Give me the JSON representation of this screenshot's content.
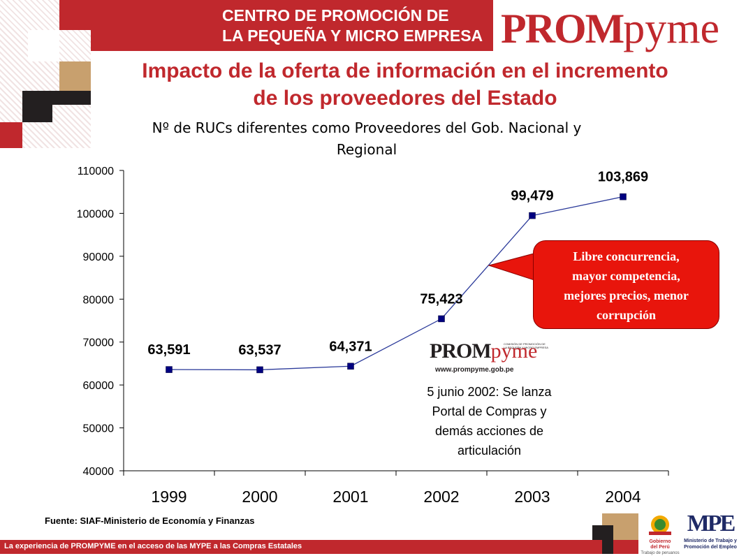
{
  "header": {
    "band_text_line1": "CENTRO DE PROMOCIÓN DE",
    "band_text_line2": "LA PEQUEÑA Y MICRO EMPRESA",
    "logo_prom": "PROM",
    "logo_pyme": "pyme"
  },
  "title_line1": "Impacto de la oferta de información en el incremento",
  "title_line2": "de los proveedores del Estado",
  "chart_data": {
    "type": "line",
    "title_line1": "Nº de RUCs diferentes como Proveedores del Gob. Nacional y",
    "title_line2": "Regional",
    "categories": [
      "1999",
      "2000",
      "2001",
      "2002",
      "2003",
      "2004"
    ],
    "values": [
      63591,
      63537,
      64371,
      75423,
      99479,
      103869
    ],
    "data_labels": [
      "63,591",
      "63,537",
      "64,371",
      "75,423",
      "99,479",
      "103,869"
    ],
    "y_ticks": [
      "40000",
      "50000",
      "60000",
      "70000",
      "80000",
      "90000",
      "100000",
      "110000"
    ],
    "ylim": [
      40000,
      110000
    ],
    "line_color": "#2b3a9a",
    "marker_color": "#000080",
    "grid": false,
    "legend": "none"
  },
  "callout": {
    "line1": "Libre concurrencia,",
    "line2": "mayor competencia,",
    "line3": "mejores precios, menor",
    "line4": "corrupción",
    "color": "#e8150c"
  },
  "mini_logo": {
    "prom": "PROM",
    "pyme": "pyme",
    "tagline1": "COMISIÓN DE PROMOCIÓN DE",
    "tagline2": "LA PEQUEÑA Y MICRO EMPRESA",
    "url": "www.prompyme.gob.pe"
  },
  "annotation": {
    "line1": "5 junio 2002: Se lanza",
    "line2": "Portal de Compras y",
    "line3": "demás acciones de",
    "line4": "articulación"
  },
  "source": "Fuente: SIAF-Ministerio de Economía y Finanzas",
  "footer": "La experiencia de PROMPYME en el acceso de las MYPE a las Compras Estatales",
  "bottom_logos": {
    "gob_line1": "Gobierno",
    "gob_line2": "del Perú",
    "gob_line3": "Trabajo de peruanos",
    "mpe_mark": "MPE",
    "mpe_line1": "Ministerio de Trabajo y",
    "mpe_line2": "Promoción del Empleo"
  },
  "colors": {
    "brand_red": "#c0282d",
    "dark_square": "#231f20",
    "tan_square": "#c8a06e"
  }
}
